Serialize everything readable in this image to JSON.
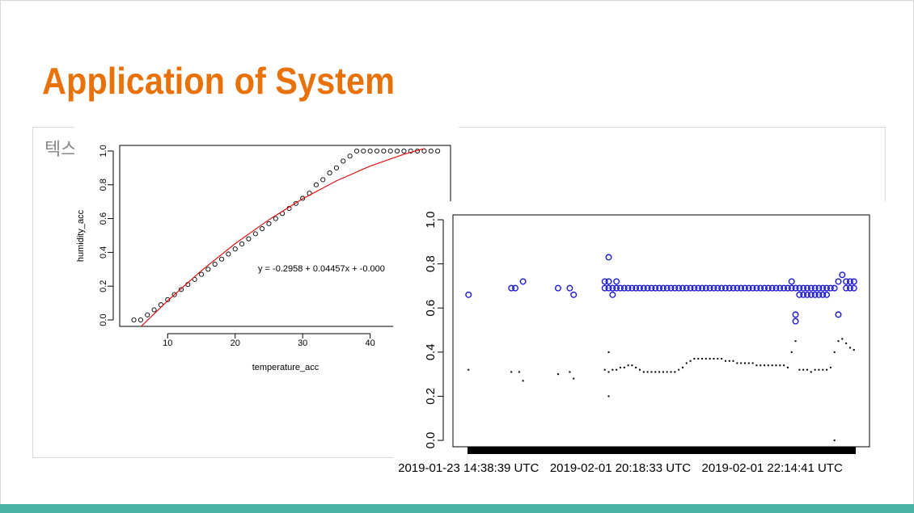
{
  "title": "Application of System",
  "placeholder": "텍스",
  "chart_data": [
    {
      "type": "scatter",
      "x_label": "temperature_acc",
      "y_label": "humidity_acc",
      "annotation": "y = -0.2958 + 0.04457x + -0.000",
      "xlim": [
        2.9,
        51.9
      ],
      "xticks": [
        10,
        20,
        30,
        40
      ],
      "ylim": [
        -0.038,
        1.033
      ],
      "yticks": [
        {
          "value": 0,
          "label": "0.0"
        },
        0.2,
        0.4,
        0.6,
        0.8,
        {
          "value": 1,
          "label": "1.0"
        }
      ],
      "series": [
        {
          "marker": "open-circle",
          "color": "#000000",
          "x": [
            5,
            6,
            7,
            8,
            9,
            10,
            11,
            12,
            13,
            14,
            15,
            16,
            17,
            18,
            19,
            20,
            21,
            22,
            23,
            24,
            25,
            26,
            27,
            28,
            29,
            30,
            31,
            32,
            33,
            34,
            35,
            36,
            37,
            38,
            39,
            40,
            41,
            42,
            43,
            44,
            45,
            46,
            47,
            48,
            49,
            50
          ],
          "values": [
            0,
            0,
            0.03,
            0.06,
            0.09,
            0.12,
            0.15,
            0.18,
            0.21,
            0.24,
            0.27,
            0.3,
            0.33,
            0.36,
            0.39,
            0.42,
            0.45,
            0.48,
            0.51,
            0.54,
            0.57,
            0.6,
            0.63,
            0.66,
            0.69,
            0.72,
            0.75,
            0.8,
            0.83,
            0.87,
            0.9,
            0.94,
            0.97,
            1,
            1,
            1,
            1,
            1,
            1,
            1,
            1,
            1,
            1,
            1,
            1,
            1
          ]
        },
        {
          "marker": "line",
          "color": "#e01010",
          "x": [
            6,
            10,
            15,
            20,
            25,
            30,
            35,
            40,
            45,
            48
          ],
          "values": [
            -0.0413,
            0.1139,
            0.2918,
            0.4516,
            0.5934,
            0.7173,
            0.8232,
            0.911,
            0.9808,
            1.0141
          ]
        }
      ]
    },
    {
      "type": "scatter",
      "xlim": [
        -3,
        104
      ],
      "xticks": [
        {
          "value": 1,
          "label": "2019-01-23 14:38:39 UTC"
        },
        {
          "value": 40,
          "label": "2019-02-01 20:18:33 UTC"
        },
        {
          "value": 79,
          "label": "2019-02-01 22:14:41 UTC"
        }
      ],
      "ylim": [
        -0.029,
        1.022
      ],
      "yticks": [
        {
          "value": 0,
          "label": "0.0"
        },
        0.2,
        0.4,
        0.6,
        0.8,
        {
          "value": 1,
          "label": "1.0"
        }
      ],
      "series": [
        {
          "marker": "open-circle",
          "color": "#1a1ad6",
          "x": [
            1,
            12,
            13,
            15,
            24,
            27,
            28,
            36,
            37,
            37,
            38,
            39,
            36,
            37,
            38,
            39,
            40,
            41,
            42,
            43,
            44,
            45,
            46,
            47,
            48,
            49,
            50,
            51,
            52,
            53,
            54,
            55,
            56,
            57,
            58,
            59,
            60,
            61,
            62,
            63,
            64,
            65,
            66,
            67,
            68,
            69,
            70,
            71,
            72,
            73,
            74,
            75,
            76,
            77,
            78,
            79,
            80,
            81,
            82,
            83,
            84,
            85,
            84,
            85,
            85,
            86,
            86,
            87,
            87,
            88,
            88,
            89,
            89,
            90,
            90,
            91,
            91,
            92,
            92,
            93,
            93,
            94,
            95,
            96,
            96,
            97,
            98,
            98,
            99,
            99,
            100,
            100
          ],
          "values": [
            0.66,
            0.69,
            0.69,
            0.72,
            0.69,
            0.69,
            0.66,
            0.72,
            0.83,
            0.72,
            0.66,
            0.72,
            0.69,
            0.69,
            0.69,
            0.69,
            0.69,
            0.69,
            0.69,
            0.69,
            0.69,
            0.69,
            0.69,
            0.69,
            0.69,
            0.69,
            0.69,
            0.69,
            0.69,
            0.69,
            0.69,
            0.69,
            0.69,
            0.69,
            0.69,
            0.69,
            0.69,
            0.69,
            0.69,
            0.69,
            0.69,
            0.69,
            0.69,
            0.69,
            0.69,
            0.69,
            0.69,
            0.69,
            0.69,
            0.69,
            0.69,
            0.69,
            0.69,
            0.69,
            0.69,
            0.69,
            0.69,
            0.69,
            0.69,
            0.69,
            0.69,
            0.69,
            0.72,
            0.57,
            0.54,
            0.66,
            0.69,
            0.66,
            0.69,
            0.66,
            0.69,
            0.66,
            0.69,
            0.66,
            0.69,
            0.66,
            0.69,
            0.66,
            0.69,
            0.66,
            0.69,
            0.69,
            0.69,
            0.72,
            0.57,
            0.75,
            0.72,
            0.69,
            0.72,
            0.69,
            0.72,
            0.69
          ]
        },
        {
          "marker": "dot",
          "color": "#000000",
          "x": [
            1,
            12,
            14,
            15,
            24,
            27,
            28,
            37,
            37,
            95,
            36,
            37,
            38,
            39,
            40,
            41,
            42,
            43,
            44,
            45,
            46,
            47,
            48,
            49,
            50,
            51,
            52,
            53,
            54,
            55,
            56,
            57,
            58,
            59,
            60,
            61,
            62,
            63,
            64,
            65,
            66,
            67,
            68,
            69,
            70,
            71,
            72,
            73,
            74,
            75,
            76,
            77,
            78,
            79,
            80,
            81,
            82,
            83,
            84,
            85,
            86,
            87,
            88,
            89,
            90,
            91,
            92,
            93,
            94,
            95,
            96,
            97,
            98,
            99,
            100
          ],
          "values": [
            0.32,
            0.31,
            0.31,
            0.27,
            0.3,
            0.31,
            0.28,
            0.4,
            0.2,
            0.0,
            0.32,
            0.31,
            0.32,
            0.32,
            0.33,
            0.33,
            0.34,
            0.34,
            0.33,
            0.32,
            0.31,
            0.31,
            0.31,
            0.31,
            0.31,
            0.31,
            0.31,
            0.31,
            0.31,
            0.32,
            0.33,
            0.35,
            0.36,
            0.37,
            0.37,
            0.37,
            0.37,
            0.37,
            0.37,
            0.37,
            0.37,
            0.36,
            0.36,
            0.36,
            0.35,
            0.35,
            0.35,
            0.35,
            0.35,
            0.34,
            0.34,
            0.34,
            0.34,
            0.34,
            0.34,
            0.34,
            0.34,
            0.33,
            0.4,
            0.45,
            0.32,
            0.32,
            0.32,
            0.31,
            0.32,
            0.32,
            0.32,
            0.32,
            0.33,
            0.4,
            0.45,
            0.46,
            0.44,
            0.42,
            0.41
          ]
        }
      ]
    }
  ]
}
